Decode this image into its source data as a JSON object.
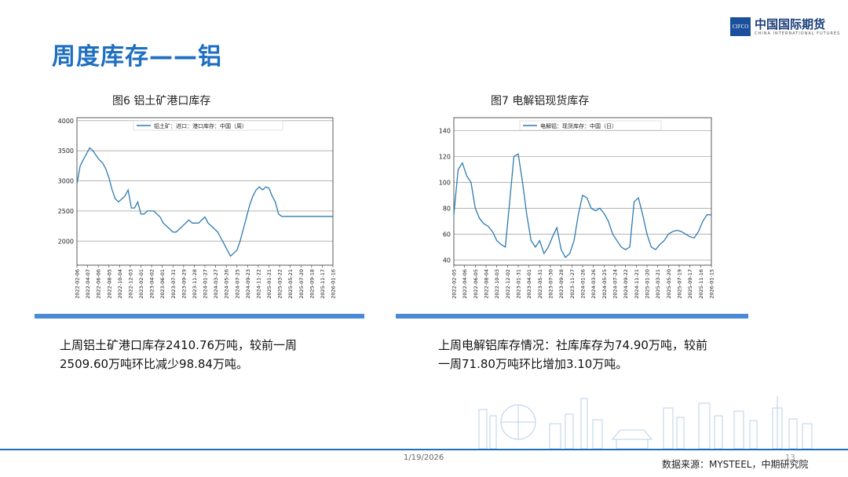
{
  "page_title": "周度库存——铝",
  "logo": {
    "abbr": "CIFCO",
    "cn": "中国国际期货",
    "en": "CHINA INTERNATIONAL FUTURES"
  },
  "left": {
    "caption": "图6  铝土矿港口库存",
    "text": "上周铝土矿港口库存2410.76万吨，较前一周2509.60万吨环比减少98.84万吨。"
  },
  "right": {
    "caption": "图7  电解铝现货库存",
    "text": "上周电解铝库存情况：社库库存为74.90万吨，较前一周71.80万吨环比增加3.10万吨。"
  },
  "footer": {
    "date": "1/19/2026",
    "page": "13",
    "source": "数据来源：MYSTEEL，中期研究院"
  },
  "chart_data": [
    {
      "type": "line",
      "legend": "铝土矿：进口：港口库存：中国（周）",
      "ylim": [
        1600,
        4050
      ],
      "yticks": [
        2000,
        2500,
        3000,
        3500,
        4000
      ],
      "grid": "horizontal",
      "color": "#2e7bb0",
      "xtick_labels": [
        "2022-02-06",
        "2022-04-07",
        "2022-06-06",
        "2022-08-05",
        "2022-10-04",
        "2022-12-03",
        "2023-02-01",
        "2023-04-02",
        "2023-06-01",
        "2023-07-31",
        "2023-09-29",
        "2023-11-28",
        "2024-01-27",
        "2024-03-27",
        "2024-05-26",
        "2024-07-25",
        "2024-09-23",
        "2024-11-22",
        "2025-01-21",
        "2025-03-22",
        "2025-05-21",
        "2025-07-20",
        "2025-09-18",
        "2025-11-17",
        "2026-01-16"
      ],
      "x": [
        0,
        0.3,
        0.6,
        0.9,
        1.2,
        1.5,
        1.8,
        2.1,
        2.4,
        2.7,
        3,
        3.3,
        3.6,
        3.9,
        4.2,
        4.5,
        4.8,
        5.1,
        5.4,
        5.7,
        6,
        6.3,
        6.6,
        6.9,
        7.2,
        7.5,
        7.8,
        8.1,
        8.4,
        8.7,
        9,
        9.3,
        9.6,
        9.9,
        10.2,
        10.5,
        10.8,
        11.1,
        11.4,
        11.7,
        12,
        12.3,
        12.6,
        12.9,
        13.2,
        13.5,
        13.8,
        14.1,
        14.4,
        14.7,
        15,
        15.3,
        15.6,
        15.9,
        16.2,
        16.5,
        16.8,
        17.1,
        17.4,
        17.7,
        18,
        18.3,
        18.6,
        18.9,
        19.2,
        19.5,
        19.8,
        20.1,
        20.4,
        20.7,
        21,
        21.3,
        21.6,
        21.9,
        22.2,
        22.5,
        22.8,
        23.1,
        23.4,
        23.7,
        24
      ],
      "values": [
        2950,
        3250,
        3350,
        3450,
        3550,
        3500,
        3420,
        3350,
        3300,
        3200,
        3050,
        2850,
        2700,
        2650,
        2700,
        2750,
        2850,
        2550,
        2550,
        2650,
        2450,
        2450,
        2500,
        2500,
        2500,
        2450,
        2400,
        2300,
        2250,
        2200,
        2150,
        2150,
        2200,
        2250,
        2300,
        2350,
        2300,
        2300,
        2300,
        2350,
        2400,
        2300,
        2250,
        2200,
        2150,
        2050,
        1950,
        1850,
        1750,
        1800,
        1850,
        2000,
        2200,
        2400,
        2600,
        2750,
        2850,
        2900,
        2850,
        2900,
        2880,
        2750,
        2650,
        2450,
        2410,
        2410,
        2410,
        2410,
        2410,
        2410,
        2410,
        2410,
        2410,
        2410,
        2410,
        2410,
        2410,
        2410,
        2410,
        2410,
        2410
      ]
    },
    {
      "type": "line",
      "legend": "电解铝：现货库存：中国（日）",
      "ylim": [
        36,
        150
      ],
      "yticks": [
        40,
        60,
        80,
        100,
        120,
        140
      ],
      "grid": "horizontal",
      "color": "#2e7bb0",
      "xtick_labels": [
        "2022-02-05",
        "2022-04-06",
        "2022-06-05",
        "2022-08-04",
        "2022-10-03",
        "2022-12-02",
        "2023-01-31",
        "2023-04-01",
        "2023-05-31",
        "2023-07-30",
        "2023-09-28",
        "2023-11-27",
        "2024-01-26",
        "2024-03-26",
        "2024-05-25",
        "2024-07-24",
        "2024-09-22",
        "2024-11-21",
        "2025-01-20",
        "2025-03-21",
        "2025-05-20",
        "2025-07-19",
        "2025-09-17",
        "2025-11-16",
        "2026-01-15"
      ],
      "x": [
        0,
        0.4,
        0.8,
        1.2,
        1.6,
        2,
        2.4,
        2.8,
        3.2,
        3.6,
        4,
        4.4,
        4.8,
        5.2,
        5.6,
        6,
        6.4,
        6.8,
        7.2,
        7.6,
        8,
        8.4,
        8.8,
        9.2,
        9.6,
        10,
        10.4,
        10.8,
        11.2,
        11.6,
        12,
        12.4,
        12.8,
        13.2,
        13.6,
        14,
        14.4,
        14.8,
        15.2,
        15.6,
        16,
        16.4,
        16.8,
        17.2,
        17.6,
        18,
        18.4,
        18.8,
        19.2,
        19.6,
        20,
        20.4,
        20.8,
        21.2,
        21.6,
        22,
        22.4,
        22.8,
        23.2,
        23.6,
        24
      ],
      "values": [
        75,
        110,
        115,
        105,
        100,
        80,
        72,
        68,
        66,
        62,
        55,
        52,
        50,
        85,
        120,
        122,
        100,
        75,
        55,
        50,
        55,
        45,
        50,
        58,
        65,
        48,
        42,
        45,
        55,
        75,
        90,
        88,
        80,
        78,
        80,
        76,
        70,
        60,
        55,
        50,
        48,
        50,
        85,
        88,
        75,
        60,
        50,
        48,
        52,
        55,
        60,
        62,
        63,
        62,
        60,
        58,
        57,
        62,
        70,
        75,
        75
      ]
    }
  ]
}
